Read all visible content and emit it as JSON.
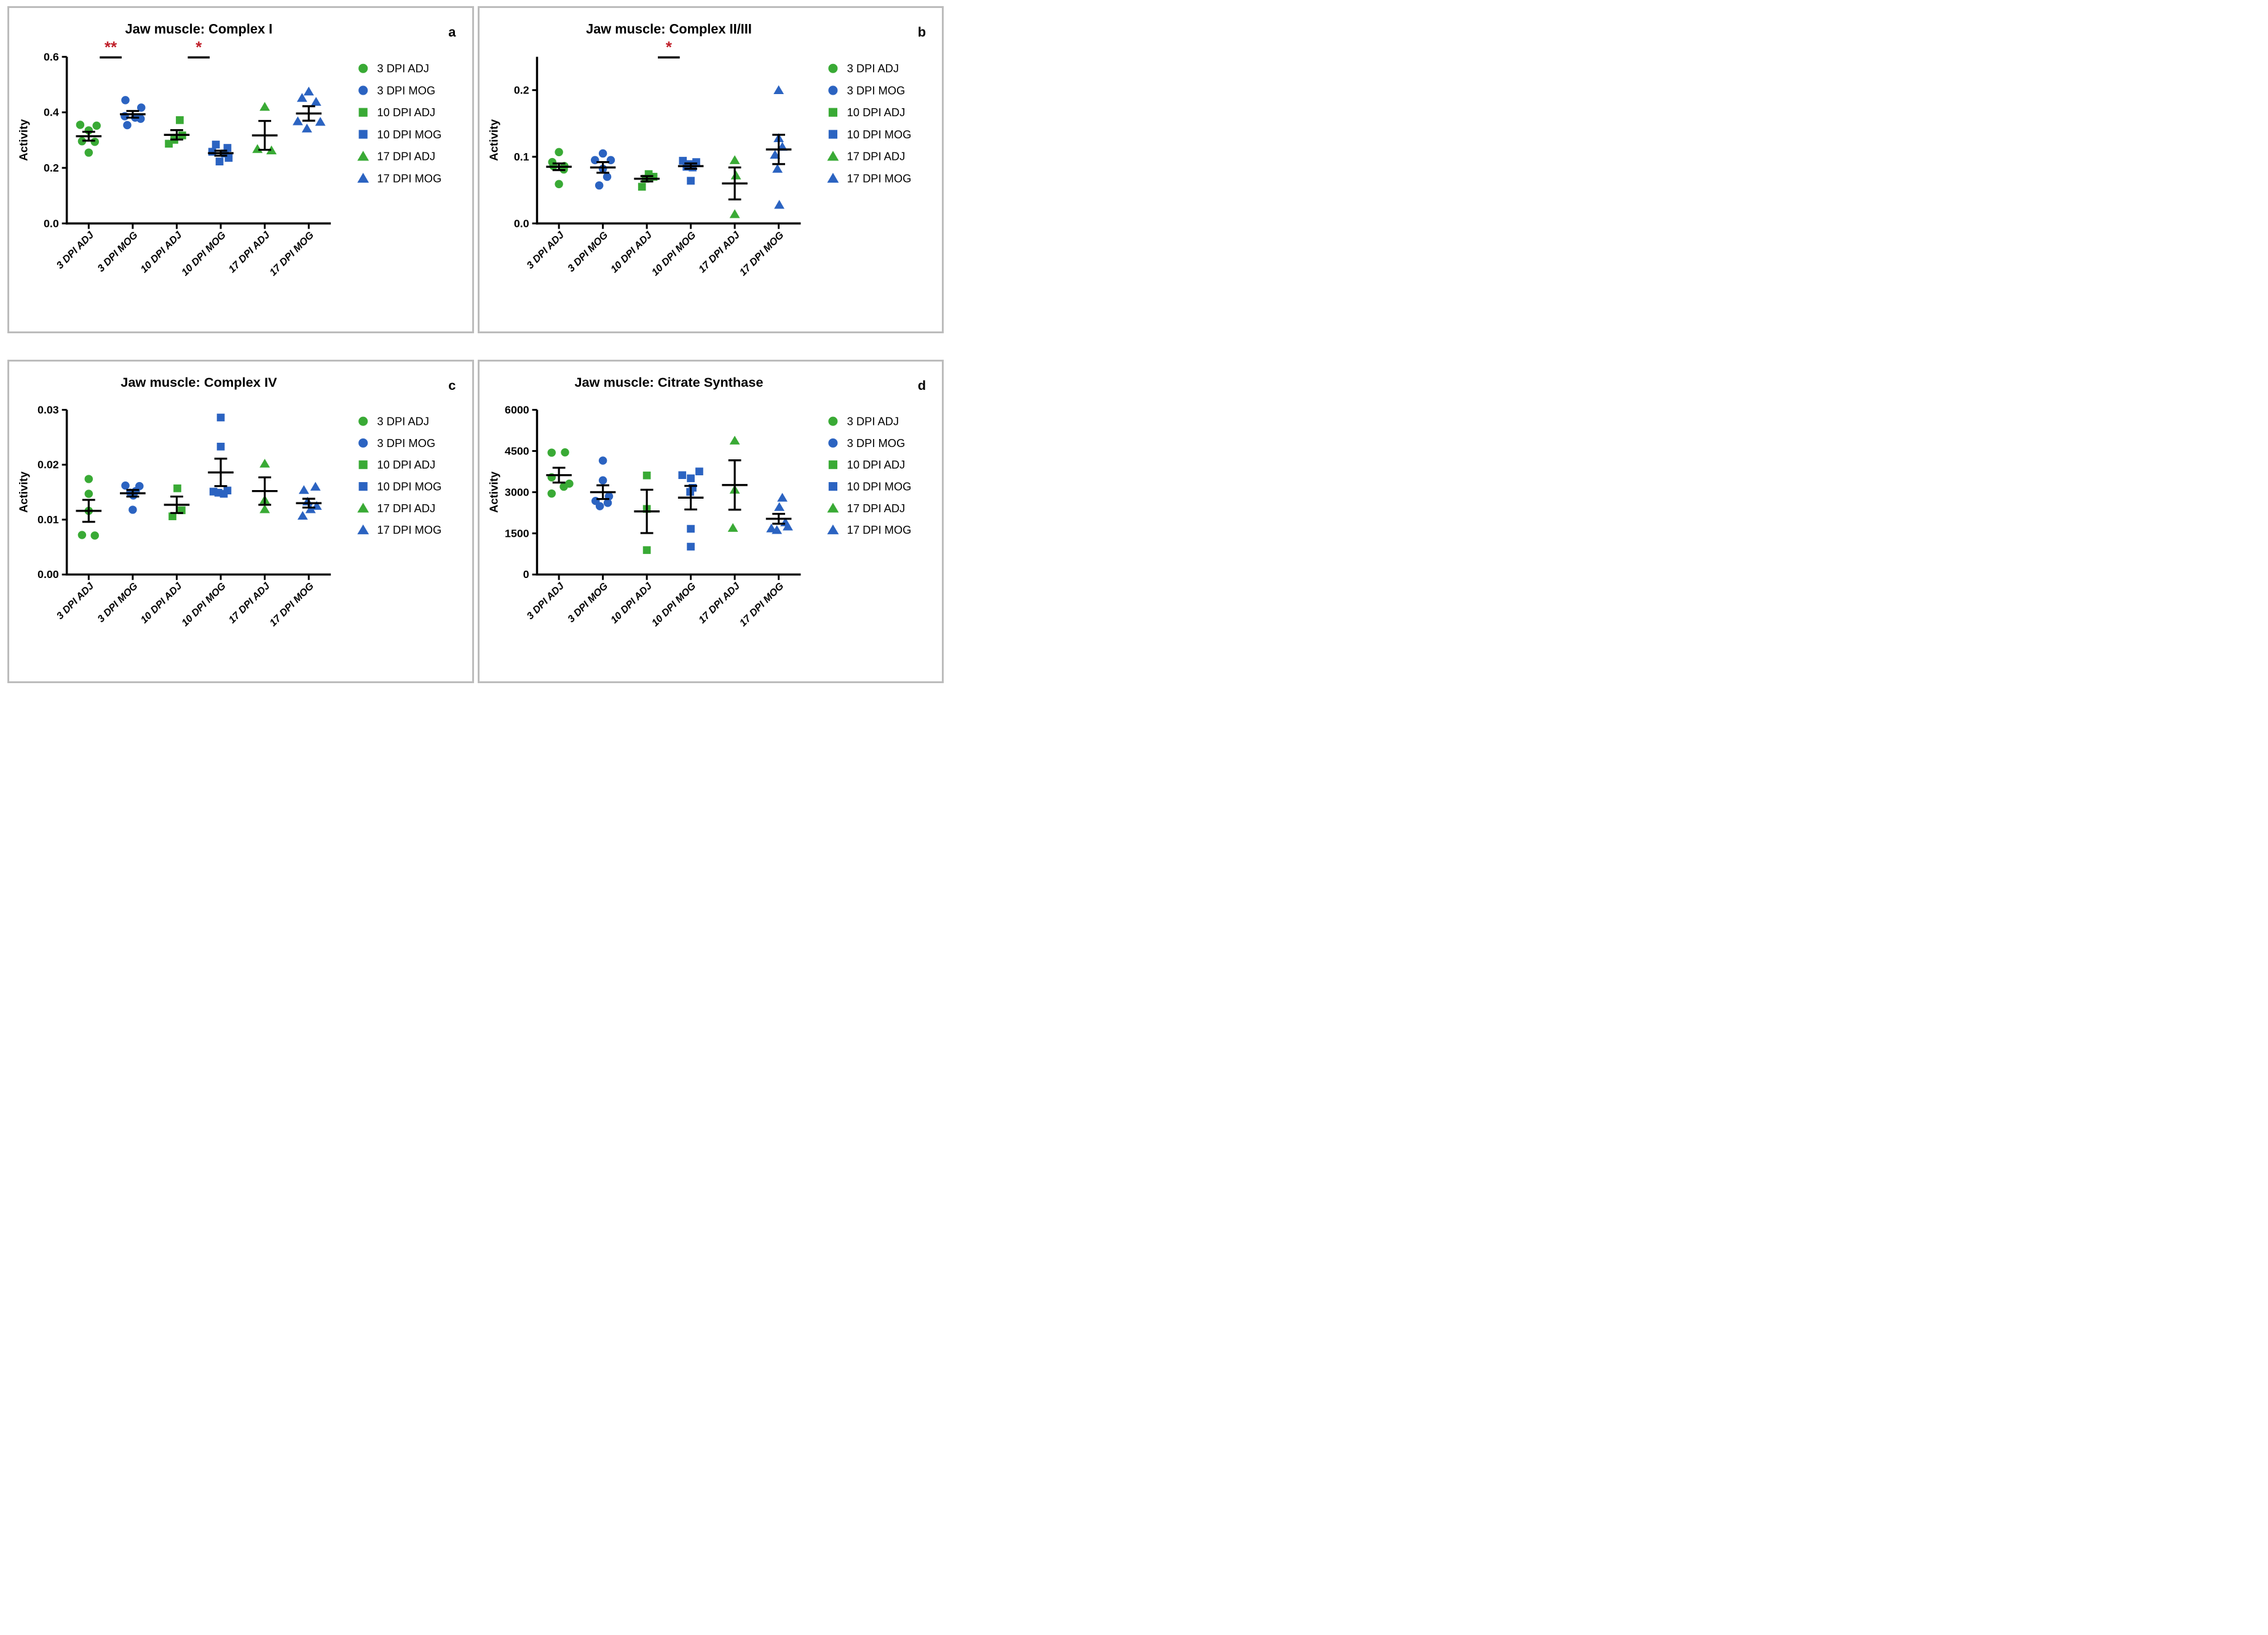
{
  "figure": {
    "background": "#ffffff",
    "panel_border_color": "#bcbcbc",
    "axis_color": "#000000",
    "significance_color": "#c0202a",
    "adj_color": "#39aa35",
    "mog_color": "#2b63c1",
    "ylabel": "Activity",
    "legend_labels": [
      "3 DPI ADJ",
      "3 DPI MOG",
      "10 DPI ADJ",
      "10 DPI MOG",
      "17 DPI ADJ",
      "17 DPI MOG"
    ]
  },
  "chart_data": [
    {
      "type": "scatter",
      "panel_label": "a",
      "title": "Jaw muscle: Complex I",
      "ylabel": "Activity",
      "ylim": [
        0,
        0.6
      ],
      "yticks": [
        {
          "v": 0,
          "label": "0.0"
        },
        {
          "v": 0.2,
          "label": "0.2"
        },
        {
          "v": 0.4,
          "label": "0.4"
        },
        {
          "v": 0.6,
          "label": "0.6"
        }
      ],
      "categories": [
        "3 DPI ADJ",
        "3 DPI MOG",
        "10 DPI ADJ",
        "10 DPI MOG",
        "17 DPI ADJ",
        "17 DPI MOG"
      ],
      "significance": [
        {
          "between": [
            "3 DPI ADJ",
            "3 DPI MOG"
          ],
          "label": "**"
        },
        {
          "between": [
            "10 DPI ADJ",
            "10 DPI MOG"
          ],
          "label": "*"
        }
      ],
      "groups": [
        {
          "name": "3 DPI ADJ",
          "marker": "circle",
          "color": "#39aa35",
          "mean": 0.314,
          "sem": 0.016,
          "points": [
            {
              "dx": -14,
              "v": 0.355
            },
            {
              "dx": 13,
              "v": 0.352
            },
            {
              "dx": 0,
              "v": 0.335
            },
            {
              "dx": -11,
              "v": 0.296
            },
            {
              "dx": 10,
              "v": 0.294
            },
            {
              "dx": 0,
              "v": 0.255
            }
          ]
        },
        {
          "name": "3 DPI MOG",
          "marker": "circle",
          "color": "#2b63c1",
          "mean": 0.393,
          "sem": 0.012,
          "points": [
            {
              "dx": -12,
              "v": 0.444
            },
            {
              "dx": 14,
              "v": 0.417
            },
            {
              "dx": -13,
              "v": 0.386
            },
            {
              "dx": 4,
              "v": 0.381
            },
            {
              "dx": 13,
              "v": 0.377
            },
            {
              "dx": -9,
              "v": 0.354
            }
          ]
        },
        {
          "name": "10 DPI ADJ",
          "marker": "square",
          "color": "#39aa35",
          "mean": 0.319,
          "sem": 0.017,
          "points": [
            {
              "dx": 5,
              "v": 0.372
            },
            {
              "dx": 9,
              "v": 0.317
            },
            {
              "dx": -4,
              "v": 0.301
            },
            {
              "dx": -13,
              "v": 0.287
            }
          ]
        },
        {
          "name": "10 DPI MOG",
          "marker": "square",
          "color": "#2b63c1",
          "mean": 0.253,
          "sem": 0.009,
          "points": [
            {
              "dx": -8,
              "v": 0.284
            },
            {
              "dx": 11,
              "v": 0.272
            },
            {
              "dx": -14,
              "v": 0.258
            },
            {
              "dx": 7,
              "v": 0.252
            },
            {
              "dx": 13,
              "v": 0.236
            },
            {
              "dx": -2,
              "v": 0.223
            }
          ]
        },
        {
          "name": "17 DPI ADJ",
          "marker": "triangle",
          "color": "#39aa35",
          "mean": 0.317,
          "sem": 0.052,
          "points": [
            {
              "dx": 0,
              "v": 0.42
            },
            {
              "dx": -12,
              "v": 0.268
            },
            {
              "dx": 11,
              "v": 0.263
            }
          ]
        },
        {
          "name": "17 DPI MOG",
          "marker": "triangle",
          "color": "#2b63c1",
          "mean": 0.396,
          "sem": 0.026,
          "points": [
            {
              "dx": 0,
              "v": 0.475
            },
            {
              "dx": -11,
              "v": 0.452
            },
            {
              "dx": 12,
              "v": 0.438
            },
            {
              "dx": -18,
              "v": 0.368
            },
            {
              "dx": 19,
              "v": 0.366
            },
            {
              "dx": -3,
              "v": 0.342
            }
          ]
        }
      ]
    },
    {
      "type": "scatter",
      "panel_label": "b",
      "title": "Jaw muscle: Complex II/III",
      "ylabel": "Activity",
      "ylim": [
        0,
        0.25
      ],
      "yticks": [
        {
          "v": 0,
          "label": "0.0"
        },
        {
          "v": 0.1,
          "label": "0.1"
        },
        {
          "v": 0.2,
          "label": "0.2"
        }
      ],
      "categories": [
        "3 DPI ADJ",
        "3 DPI MOG",
        "10 DPI ADJ",
        "10 DPI MOG",
        "17 DPI ADJ",
        "17 DPI MOG"
      ],
      "significance": [
        {
          "between": [
            "10 DPI ADJ",
            "10 DPI MOG"
          ],
          "label": "*"
        }
      ],
      "groups": [
        {
          "name": "3 DPI ADJ",
          "marker": "circle",
          "color": "#39aa35",
          "mean": 0.085,
          "sem": 0.005,
          "points": [
            {
              "dx": 0,
              "v": 0.107
            },
            {
              "dx": -11,
              "v": 0.092
            },
            {
              "dx": -9,
              "v": 0.086
            },
            {
              "dx": 9,
              "v": 0.086
            },
            {
              "dx": 8,
              "v": 0.081
            },
            {
              "dx": 0,
              "v": 0.059
            }
          ]
        },
        {
          "name": "3 DPI MOG",
          "marker": "circle",
          "color": "#2b63c1",
          "mean": 0.084,
          "sem": 0.008,
          "points": [
            {
              "dx": 0,
              "v": 0.105
            },
            {
              "dx": -13,
              "v": 0.095
            },
            {
              "dx": 13,
              "v": 0.095
            },
            {
              "dx": 0,
              "v": 0.082
            },
            {
              "dx": 7,
              "v": 0.07
            },
            {
              "dx": -6,
              "v": 0.057
            }
          ]
        },
        {
          "name": "10 DPI ADJ",
          "marker": "square",
          "color": "#39aa35",
          "mean": 0.067,
          "sem": 0.004,
          "points": [
            {
              "dx": 3,
              "v": 0.074
            },
            {
              "dx": 11,
              "v": 0.07
            },
            {
              "dx": -2,
              "v": 0.067
            },
            {
              "dx": -8,
              "v": 0.055
            }
          ]
        },
        {
          "name": "10 DPI MOG",
          "marker": "square",
          "color": "#2b63c1",
          "mean": 0.086,
          "sem": 0.004,
          "points": [
            {
              "dx": -13,
              "v": 0.094
            },
            {
              "dx": 9,
              "v": 0.092
            },
            {
              "dx": -3,
              "v": 0.089
            },
            {
              "dx": -7,
              "v": 0.085
            },
            {
              "dx": 3,
              "v": 0.084
            },
            {
              "dx": 0,
              "v": 0.064
            }
          ]
        },
        {
          "name": "17 DPI ADJ",
          "marker": "triangle",
          "color": "#39aa35",
          "mean": 0.06,
          "sem": 0.024,
          "points": [
            {
              "dx": 0,
              "v": 0.095
            },
            {
              "dx": 2,
              "v": 0.072
            },
            {
              "dx": 0,
              "v": 0.014
            }
          ]
        },
        {
          "name": "17 DPI MOG",
          "marker": "triangle",
          "color": "#2b63c1",
          "mean": 0.111,
          "sem": 0.022,
          "points": [
            {
              "dx": 0,
              "v": 0.2
            },
            {
              "dx": 0,
              "v": 0.128
            },
            {
              "dx": 6,
              "v": 0.115
            },
            {
              "dx": -6,
              "v": 0.103
            },
            {
              "dx": -2,
              "v": 0.082
            },
            {
              "dx": 1,
              "v": 0.028
            }
          ]
        }
      ]
    },
    {
      "type": "scatter",
      "panel_label": "c",
      "title": "Jaw muscle: Complex IV",
      "ylabel": "Activity",
      "ylim": [
        0,
        0.03
      ],
      "yticks": [
        {
          "v": 0,
          "label": "0.00"
        },
        {
          "v": 0.01,
          "label": "0.01"
        },
        {
          "v": 0.02,
          "label": "0.02"
        },
        {
          "v": 0.03,
          "label": "0.03"
        }
      ],
      "categories": [
        "3 DPI ADJ",
        "3 DPI MOG",
        "10 DPI ADJ",
        "10 DPI MOG",
        "17 DPI ADJ",
        "17 DPI MOG"
      ],
      "significance": [],
      "groups": [
        {
          "name": "3 DPI ADJ",
          "marker": "circle",
          "color": "#39aa35",
          "mean": 0.0116,
          "sem": 0.002,
          "points": [
            {
              "dx": 0,
              "v": 0.0174
            },
            {
              "dx": 0,
              "v": 0.0147
            },
            {
              "dx": 0,
              "v": 0.0116
            },
            {
              "dx": -11,
              "v": 0.0072
            },
            {
              "dx": 10,
              "v": 0.0071
            }
          ]
        },
        {
          "name": "3 DPI MOG",
          "marker": "circle",
          "color": "#2b63c1",
          "mean": 0.0148,
          "sem": 0.0006,
          "points": [
            {
              "dx": -12,
              "v": 0.0162
            },
            {
              "dx": 11,
              "v": 0.0161
            },
            {
              "dx": 5,
              "v": 0.0152
            },
            {
              "dx": -4,
              "v": 0.0149
            },
            {
              "dx": 1,
              "v": 0.0144
            },
            {
              "dx": 0,
              "v": 0.0118
            }
          ]
        },
        {
          "name": "10 DPI ADJ",
          "marker": "square",
          "color": "#39aa35",
          "mean": 0.0127,
          "sem": 0.0015,
          "points": [
            {
              "dx": 1,
              "v": 0.0157
            },
            {
              "dx": 8,
              "v": 0.0117
            },
            {
              "dx": -7,
              "v": 0.0106
            }
          ]
        },
        {
          "name": "10 DPI MOG",
          "marker": "square",
          "color": "#2b63c1",
          "mean": 0.0186,
          "sem": 0.0025,
          "points": [
            {
              "dx": 0,
              "v": 0.0286
            },
            {
              "dx": 0,
              "v": 0.0233
            },
            {
              "dx": 11,
              "v": 0.0153
            },
            {
              "dx": -12,
              "v": 0.0151
            },
            {
              "dx": -4,
              "v": 0.0149
            },
            {
              "dx": 5,
              "v": 0.0147
            }
          ]
        },
        {
          "name": "17 DPI ADJ",
          "marker": "triangle",
          "color": "#39aa35",
          "mean": 0.0152,
          "sem": 0.0025,
          "points": [
            {
              "dx": 0,
              "v": 0.0202
            },
            {
              "dx": 0,
              "v": 0.0136
            },
            {
              "dx": 0,
              "v": 0.0119
            }
          ]
        },
        {
          "name": "17 DPI MOG",
          "marker": "triangle",
          "color": "#2b63c1",
          "mean": 0.013,
          "sem": 0.0008,
          "points": [
            {
              "dx": 11,
              "v": 0.016
            },
            {
              "dx": -8,
              "v": 0.0154
            },
            {
              "dx": -2,
              "v": 0.0133
            },
            {
              "dx": 13,
              "v": 0.0125
            },
            {
              "dx": 3,
              "v": 0.0119
            },
            {
              "dx": -10,
              "v": 0.0107
            }
          ]
        }
      ]
    },
    {
      "type": "scatter",
      "panel_label": "d",
      "title": "Jaw muscle: Citrate Synthase",
      "ylabel": "Activity",
      "ylim": [
        0,
        6000
      ],
      "yticks": [
        {
          "v": 0,
          "label": "0"
        },
        {
          "v": 1500,
          "label": "1500"
        },
        {
          "v": 3000,
          "label": "3000"
        },
        {
          "v": 4500,
          "label": "4500"
        },
        {
          "v": 6000,
          "label": "6000"
        }
      ],
      "categories": [
        "3 DPI ADJ",
        "3 DPI MOG",
        "10 DPI ADJ",
        "10 DPI MOG",
        "17 DPI ADJ",
        "17 DPI MOG"
      ],
      "significance": [],
      "groups": [
        {
          "name": "3 DPI ADJ",
          "marker": "circle",
          "color": "#39aa35",
          "mean": 3620,
          "sem": 270,
          "points": [
            {
              "dx": -12,
              "v": 4440
            },
            {
              "dx": 10,
              "v": 4450
            },
            {
              "dx": -12,
              "v": 3540
            },
            {
              "dx": 8,
              "v": 3200
            },
            {
              "dx": 17,
              "v": 3310
            },
            {
              "dx": -12,
              "v": 2950
            }
          ]
        },
        {
          "name": "3 DPI MOG",
          "marker": "circle",
          "color": "#2b63c1",
          "mean": 3000,
          "sem": 250,
          "points": [
            {
              "dx": 0,
              "v": 4150
            },
            {
              "dx": 0,
              "v": 3430
            },
            {
              "dx": 10,
              "v": 2850
            },
            {
              "dx": -12,
              "v": 2680
            },
            {
              "dx": 8,
              "v": 2610
            },
            {
              "dx": -5,
              "v": 2490
            }
          ]
        },
        {
          "name": "10 DPI ADJ",
          "marker": "square",
          "color": "#39aa35",
          "mean": 2300,
          "sem": 790,
          "points": [
            {
              "dx": 0,
              "v": 3610
            },
            {
              "dx": 0,
              "v": 2390
            },
            {
              "dx": 0,
              "v": 890
            }
          ]
        },
        {
          "name": "10 DPI MOG",
          "marker": "square",
          "color": "#2b63c1",
          "mean": 2800,
          "sem": 430,
          "points": [
            {
              "dx": -14,
              "v": 3620
            },
            {
              "dx": 0,
              "v": 3505
            },
            {
              "dx": 14,
              "v": 3755
            },
            {
              "dx": 3,
              "v": 3160
            },
            {
              "dx": -1,
              "v": 3010
            },
            {
              "dx": 0,
              "v": 1665
            },
            {
              "dx": 0,
              "v": 1015
            }
          ]
        },
        {
          "name": "17 DPI ADJ",
          "marker": "triangle",
          "color": "#39aa35",
          "mean": 3260,
          "sem": 900,
          "points": [
            {
              "dx": 0,
              "v": 4880
            },
            {
              "dx": 0,
              "v": 3090
            },
            {
              "dx": -3,
              "v": 1700
            }
          ]
        },
        {
          "name": "17 DPI MOG",
          "marker": "triangle",
          "color": "#2b63c1",
          "mean": 2030,
          "sem": 180,
          "points": [
            {
              "dx": 6,
              "v": 2800
            },
            {
              "dx": 1,
              "v": 2460
            },
            {
              "dx": 11,
              "v": 1900
            },
            {
              "dx": 15,
              "v": 1750
            },
            {
              "dx": -12,
              "v": 1680
            },
            {
              "dx": -3,
              "v": 1620
            }
          ]
        }
      ]
    }
  ]
}
